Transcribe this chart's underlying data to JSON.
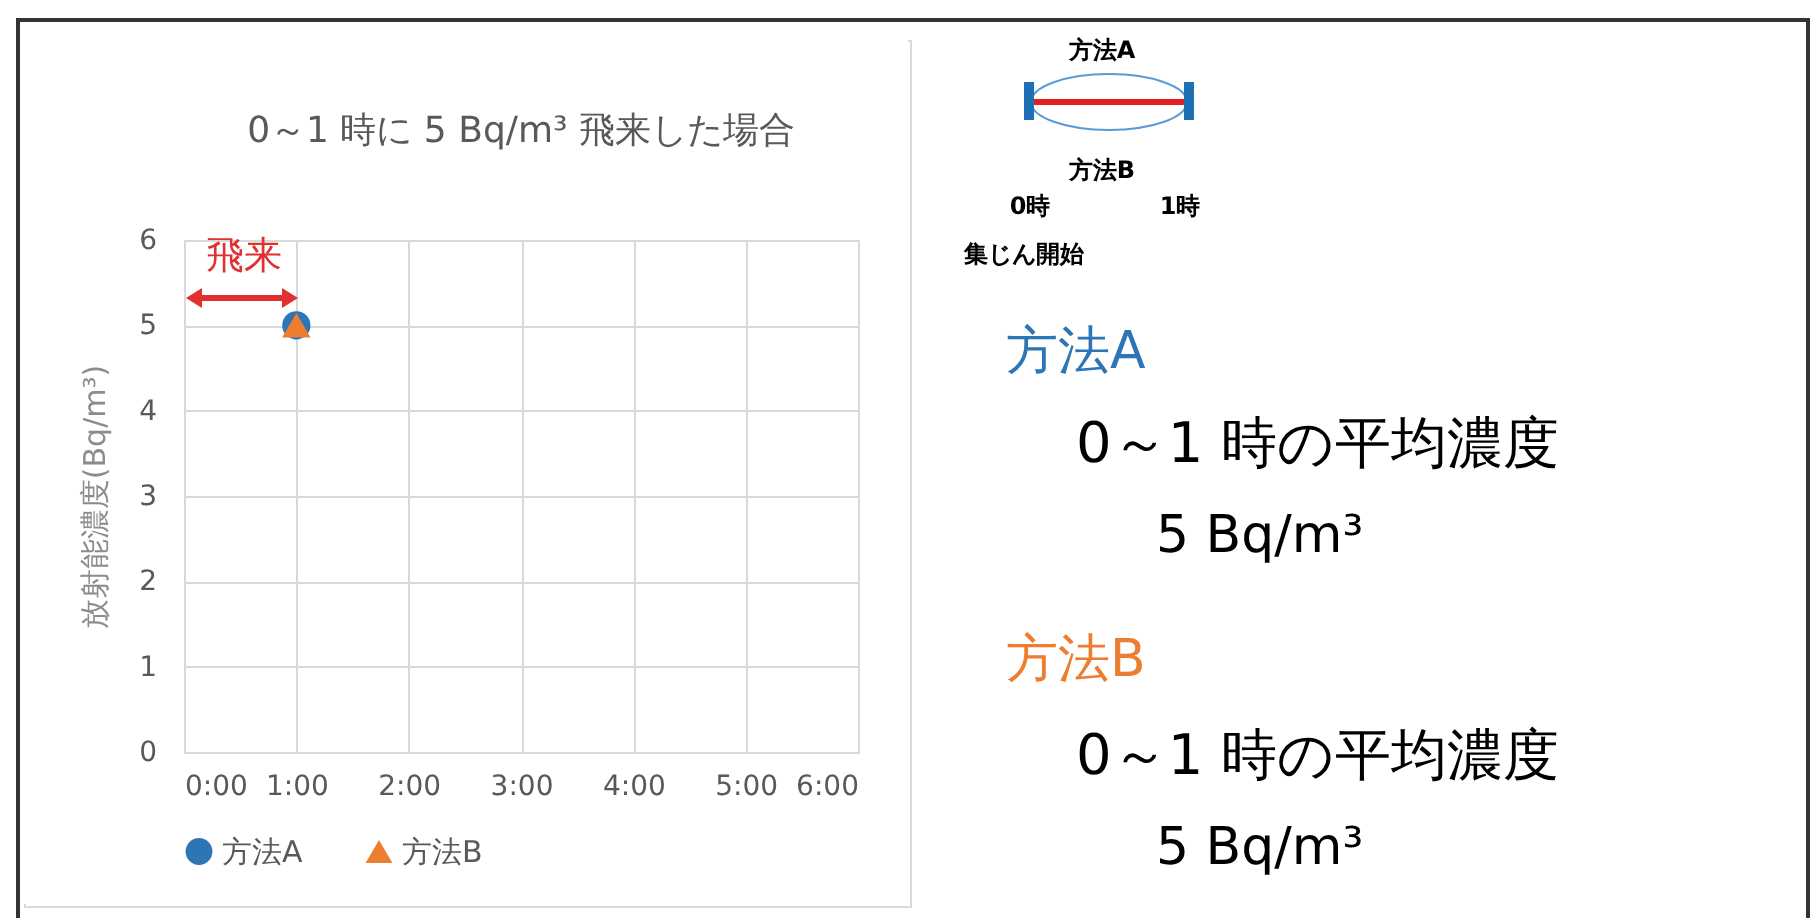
{
  "chart_data": {
    "type": "scatter",
    "title": "0～1 時に 5 Bq/m³ 飛来した場合",
    "ylabel": "放射能濃度(Bq/m³)",
    "xlim": [
      0,
      6
    ],
    "xticks": [
      {
        "value": 0,
        "label": "0:00"
      },
      {
        "value": 1,
        "label": "1:00"
      },
      {
        "value": 2,
        "label": "2:00"
      },
      {
        "value": 3,
        "label": "3:00"
      },
      {
        "value": 4,
        "label": "4:00"
      },
      {
        "value": 5,
        "label": "5:00"
      },
      {
        "value": 6,
        "label": "6:00"
      }
    ],
    "ylim": [
      0,
      6
    ],
    "yticks": [
      0,
      1,
      2,
      3,
      4,
      5,
      6
    ],
    "grid": true,
    "legend": "bottom",
    "series": [
      {
        "name": "方法A",
        "color": "#2e75b6",
        "marker": "circle",
        "x": [
          1
        ],
        "values": [
          5
        ]
      },
      {
        "name": "方法B",
        "color": "#ed7d31",
        "marker": "triangle",
        "x": [
          1
        ],
        "values": [
          5
        ]
      }
    ],
    "annotations": [
      "飛来",
      "方法A",
      "方法B",
      "0時",
      "1時",
      "集じん開始",
      "方法A",
      "0～1 時の平均濃度",
      "5 Bq/m³",
      "方法B",
      "0～1 時の平均濃度",
      "5 Bq/m³"
    ]
  }
}
